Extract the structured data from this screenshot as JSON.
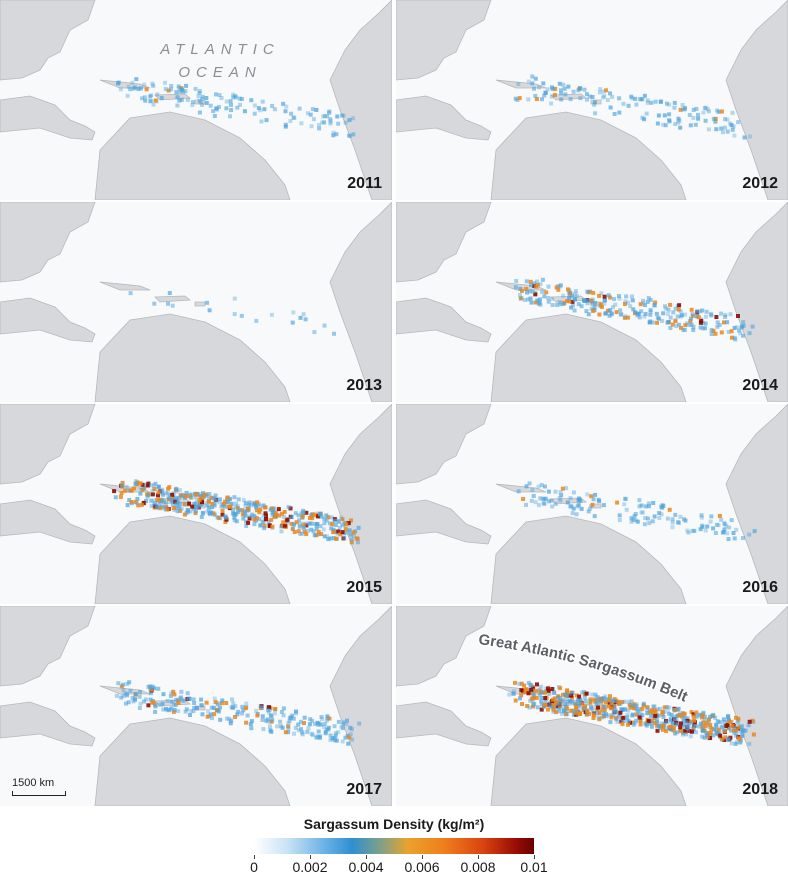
{
  "map_labels": {
    "ocean_line1": "ATLANTIC",
    "ocean_line2": "OCEAN",
    "belt": "Great Atlantic Sargassum Belt"
  },
  "panels": [
    {
      "year": "2011",
      "intensity": "low"
    },
    {
      "year": "2012",
      "intensity": "low"
    },
    {
      "year": "2013",
      "intensity": "very-low"
    },
    {
      "year": "2014",
      "intensity": "moderate"
    },
    {
      "year": "2015",
      "intensity": "high"
    },
    {
      "year": "2016",
      "intensity": "low"
    },
    {
      "year": "2017",
      "intensity": "moderate"
    },
    {
      "year": "2018",
      "intensity": "very-high"
    }
  ],
  "scale_bar": {
    "label": "1500 km"
  },
  "legend": {
    "title": "Sargassum Density (kg/m²)",
    "ticks": [
      "0",
      "0.002",
      "0.004",
      "0.006",
      "0.008",
      "0.01"
    ],
    "colors": {
      "low": "#6cb3e6",
      "mid": "#f07d1c",
      "high": "#6b0000"
    }
  },
  "colors": {
    "land": "#d6d8db",
    "ocean": "#f8f9fa",
    "coast": "#b5b9bd",
    "sargassum_light": "#4fa3dc",
    "sargassum_orange": "#e8881e",
    "sargassum_dark": "#8e0b04"
  }
}
